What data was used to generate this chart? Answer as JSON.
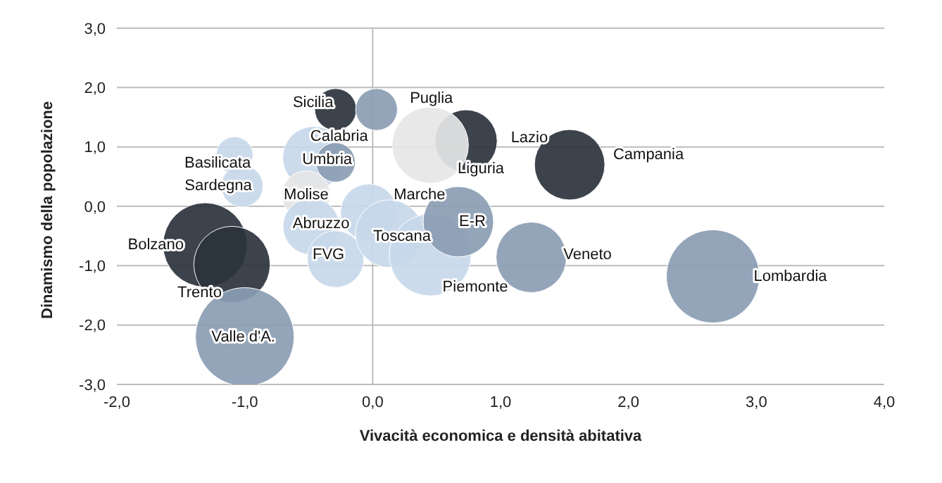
{
  "chart_data": {
    "type": "bubble",
    "xlabel": "Vivacità economica e densità abitativa",
    "ylabel": "Dinamismo della popolazione",
    "x": [
      -0.29,
      0.03,
      -0.46,
      -0.29,
      0.73,
      0.45,
      1.54,
      -1.08,
      -1.02,
      -0.52,
      -0.48,
      -0.29,
      -0.03,
      0.13,
      0.45,
      0.67,
      -1.31,
      -1.1,
      -1.0,
      1.24,
      2.66
    ],
    "values": [
      1.63,
      1.63,
      0.82,
      0.74,
      1.1,
      1.03,
      0.7,
      0.86,
      0.34,
      0.19,
      -0.34,
      -0.89,
      -0.1,
      -0.46,
      -0.82,
      -0.26,
      -0.65,
      -0.98,
      -2.2,
      -0.86,
      -1.18
    ],
    "sizes": [
      0.18,
      0.18,
      0.4,
      0.16,
      0.4,
      0.6,
      0.51,
      0.14,
      0.18,
      0.24,
      0.33,
      0.33,
      0.33,
      0.47,
      0.69,
      0.51,
      0.73,
      0.6,
      1,
      0.51,
      0.89
    ],
    "colors": [
      "#2b333d",
      "#8b9db3",
      "#c8d8ea",
      "#8b9db3",
      "#2b333d",
      "#e6e6e6",
      "#2b333d",
      "#c8d8ea",
      "#c8d8ea",
      "#e6e6e6",
      "#c8d8ea",
      "#c8d8ea",
      "#c8d8ea",
      "#c8d8ea",
      "#c8d8ea",
      "#8b9db3",
      "#2b333d",
      "#2b333d",
      "#8b9db3",
      "#8b9db3",
      "#8b9db3"
    ],
    "xlim": [
      -2,
      4
    ],
    "xticks": [
      {
        "value": -2,
        "label": "-2,0"
      },
      {
        "value": -1,
        "label": "-1,0"
      },
      {
        "value": 0,
        "label": "0,0"
      },
      {
        "value": 1,
        "label": "1,0"
      },
      {
        "value": 2,
        "label": "2,0"
      },
      {
        "value": 3,
        "label": "3,0"
      },
      {
        "value": 4,
        "label": "4,0"
      }
    ],
    "ylim": [
      -3,
      3
    ],
    "yticks": [
      {
        "value": -3,
        "label": "-3,0"
      },
      {
        "value": -2,
        "label": "-2,0"
      },
      {
        "value": -1,
        "label": "-1,0"
      },
      {
        "value": 0,
        "label": "0,0"
      },
      {
        "value": 1,
        "label": "1,0"
      },
      {
        "value": 2,
        "label": "2,0"
      },
      {
        "value": 3,
        "label": "3,0"
      }
    ],
    "grid": "y",
    "ref_lines": [
      {
        "axis": "x",
        "value": 0,
        "color": "#bdbdbd"
      }
    ],
    "annotations": [
      {
        "text": "Sicilia",
        "x": -0.29,
        "y": 1.63
      },
      {
        "text": "Puglia",
        "x": 0.03,
        "y": 1.63
      },
      {
        "text": "Calabria",
        "x": -0.46,
        "y": 0.82
      },
      {
        "text": "Umbria",
        "x": -0.29,
        "y": 0.74
      },
      {
        "text": "Lazio",
        "x": 0.73,
        "y": 1.1
      },
      {
        "text": "Liguria",
        "x": 0.45,
        "y": 1.03
      },
      {
        "text": "Campania",
        "x": 1.54,
        "y": 0.7
      },
      {
        "text": "Basilicata",
        "x": -1.08,
        "y": 0.86
      },
      {
        "text": "Sardegna",
        "x": -1.02,
        "y": 0.34
      },
      {
        "text": "Molise",
        "x": -0.52,
        "y": 0.19
      },
      {
        "text": "Abruzzo",
        "x": -0.48,
        "y": -0.34
      },
      {
        "text": "FVG",
        "x": -0.29,
        "y": -0.89
      },
      {
        "text": "Marche",
        "x": -0.03,
        "y": -0.1
      },
      {
        "text": "Toscana",
        "x": 0.13,
        "y": -0.46
      },
      {
        "text": "Piemonte",
        "x": 0.45,
        "y": -0.82
      },
      {
        "text": "E-R",
        "x": 0.67,
        "y": -0.26
      },
      {
        "text": "Bolzano",
        "x": -1.31,
        "y": -0.65
      },
      {
        "text": "Trento",
        "x": -1.1,
        "y": -0.98
      },
      {
        "text": "Valle d'A.",
        "x": -1.0,
        "y": -2.2
      },
      {
        "text": "Veneto",
        "x": 1.24,
        "y": -0.86
      },
      {
        "text": "Lombardia",
        "x": 2.66,
        "y": -1.18
      }
    ]
  }
}
